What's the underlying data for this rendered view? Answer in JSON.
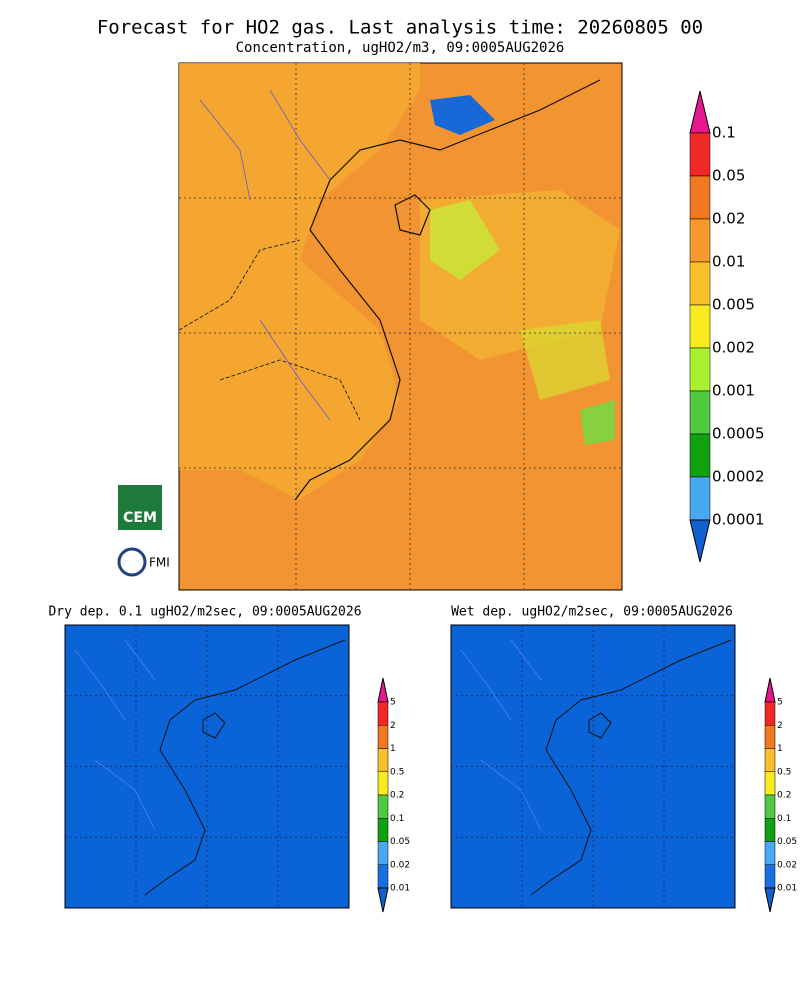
{
  "header": {
    "title": "Forecast for HO2 gas. Last analysis time: 20260805 00",
    "subtitle": "Concentration, ugHO2/m3, 09:0005AUG2026"
  },
  "main_colorbar": {
    "labels": [
      "0.1",
      "0.05",
      "0.02",
      "0.01",
      "0.005",
      "0.002",
      "0.001",
      "0.0005",
      "0.0002",
      "0.0001"
    ],
    "colors": [
      "#e8178e",
      "#f02828",
      "#f07820",
      "#f49a2c",
      "#f8c02a",
      "#f8ec20",
      "#a8f030",
      "#50c840",
      "#10a010",
      "#48a8f0",
      "#1870e0",
      "#1060d0"
    ]
  },
  "dry_panel": {
    "title": "Dry dep. 0.1 ugHO2/m2sec, 09:0005AUG2026"
  },
  "wet_panel": {
    "title": "Wet dep. ugHO2/m2sec, 09:0005AUG2026"
  },
  "small_colorbar": {
    "labels": [
      "5",
      "2",
      "1",
      "0.5",
      "0.2",
      "0.1",
      "0.05",
      "0.02",
      "0.01"
    ],
    "colors": [
      "#e8178e",
      "#f02828",
      "#f07820",
      "#f8c02a",
      "#f8ec20",
      "#50c840",
      "#10a010",
      "#48a8f0",
      "#1870e0",
      "#1060d0"
    ]
  },
  "logos": {
    "cem": "CEM",
    "fmi": "FMI"
  }
}
